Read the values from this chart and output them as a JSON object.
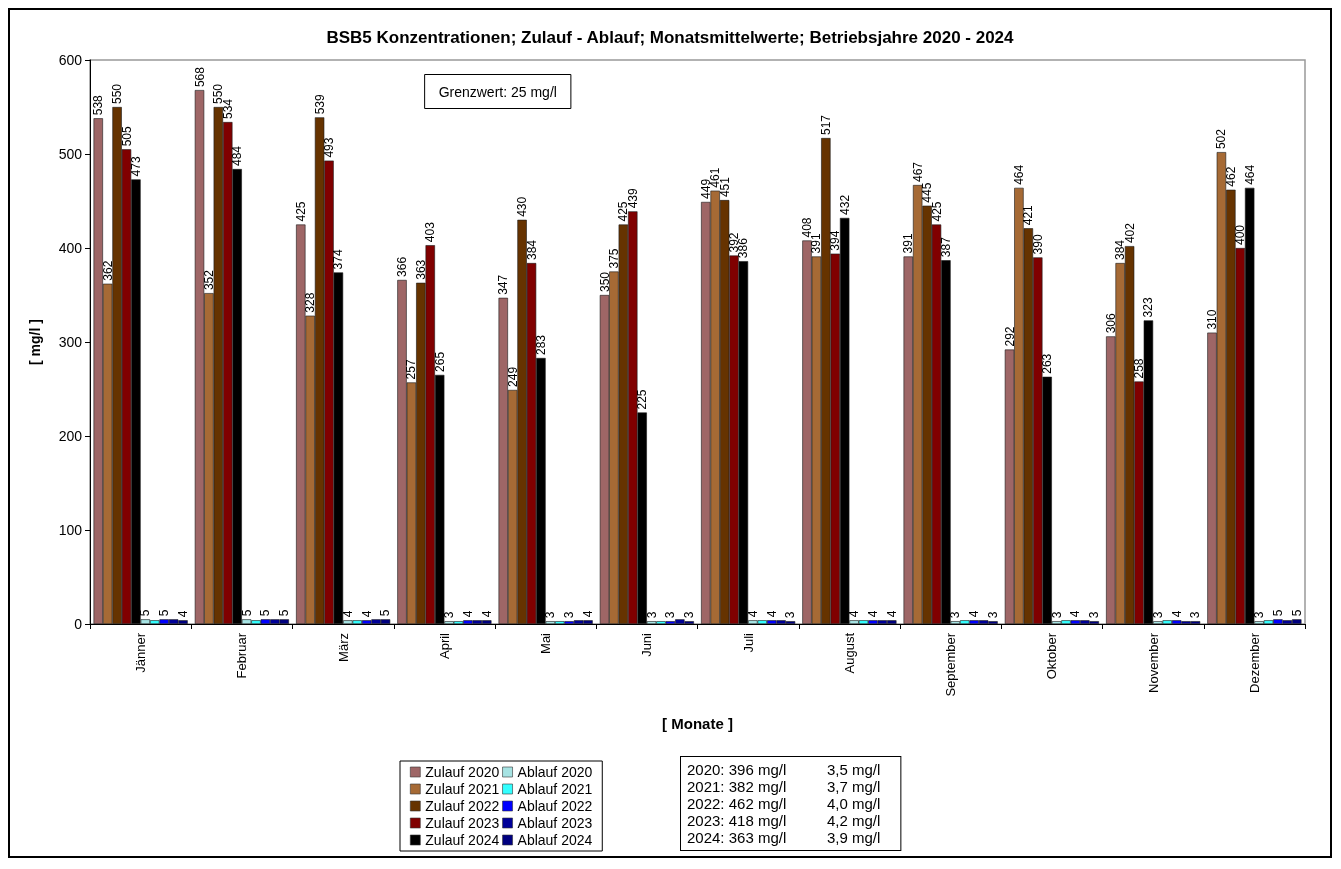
{
  "chart_data": {
    "type": "bar",
    "title": "BSB5 Konzentrationen; Zulauf - Ablauf; Monatsmittelwerte; Betriebsjahre 2020 - 2024",
    "xlabel": "[ Monate ]",
    "ylabel": "[ mg/l ]",
    "categories": [
      "Jänner",
      "Februar",
      "März",
      "April",
      "Mai",
      "Juni",
      "Juli",
      "August",
      "September",
      "Oktober",
      "November",
      "Dezember"
    ],
    "series": [
      {
        "name": "Zulauf 2020",
        "color": "#9e6666",
        "values": [
          538,
          568,
          425,
          366,
          347,
          350,
          449,
          408,
          391,
          292,
          306,
          310
        ],
        "value_labels": [
          "538",
          "568",
          "425",
          "366",
          "347",
          "350",
          "449",
          "408",
          "391",
          "292",
          "306",
          "310"
        ]
      },
      {
        "name": "Zulauf 2021",
        "color": "#a66a35",
        "values": [
          362,
          352,
          328,
          257,
          249,
          375,
          461,
          391,
          467,
          464,
          384,
          502
        ],
        "value_labels": [
          "362",
          "352",
          "328",
          "257",
          "249",
          "375",
          "461",
          "391",
          "467",
          "464",
          "384",
          "502"
        ]
      },
      {
        "name": "Zulauf 2022",
        "color": "#663300",
        "values": [
          550,
          550,
          539,
          363,
          430,
          425,
          451,
          517,
          445,
          421,
          402,
          462
        ],
        "value_labels": [
          "550",
          "550",
          "539",
          "363",
          "430",
          "425",
          "451",
          "517",
          "445",
          "421",
          "402",
          "462"
        ]
      },
      {
        "name": "Zulauf 2023",
        "color": "#800000",
        "values": [
          505,
          534,
          493,
          403,
          384,
          439,
          392,
          394,
          425,
          390,
          258,
          400
        ],
        "value_labels": [
          "505",
          "534",
          "493",
          "403",
          "384",
          "439",
          "392",
          "394",
          "425",
          "390",
          "258",
          "400"
        ]
      },
      {
        "name": "Zulauf 2024",
        "color": "#000000",
        "values": [
          473,
          484,
          374,
          265,
          283,
          225,
          386,
          432,
          387,
          263,
          323,
          464
        ],
        "value_labels": [
          "473",
          "484",
          "374",
          "265",
          "283",
          "225",
          "386",
          "432",
          "387",
          "263",
          "323",
          "464"
        ]
      },
      {
        "name": "Ablauf 2020",
        "color": "#a6e3e3",
        "values": [
          5,
          5,
          4,
          3,
          3,
          3,
          4,
          4,
          3,
          3,
          3,
          3
        ],
        "value_labels": [
          "5",
          "5",
          "4",
          "3",
          "3",
          "3",
          "4",
          "4",
          "3",
          "3",
          "3",
          "3"
        ]
      },
      {
        "name": "Ablauf 2021",
        "color": "#33ffff",
        "values": [
          4,
          4,
          4,
          3,
          3,
          3,
          4,
          4,
          4,
          4,
          4,
          4
        ]
      },
      {
        "name": "Ablauf 2022",
        "color": "#0000ff",
        "values": [
          5,
          5,
          4,
          4,
          3,
          3,
          4,
          4,
          4,
          4,
          4,
          5
        ],
        "value_labels": [
          "5",
          "5",
          "4",
          "4",
          "3",
          "3",
          "4",
          "4",
          "4",
          "4",
          "4",
          "5"
        ]
      },
      {
        "name": "Ablauf 2023",
        "color": "#000099",
        "values": [
          5,
          5,
          5,
          4,
          4,
          5,
          4,
          4,
          4,
          4,
          3,
          4
        ]
      },
      {
        "name": "Ablauf 2024",
        "color": "#000080",
        "values": [
          4,
          5,
          5,
          4,
          4,
          3,
          3,
          4,
          3,
          3,
          3,
          5
        ],
        "value_labels": [
          "4",
          "5",
          "5",
          "4",
          "4",
          "3",
          "3",
          "4",
          "3",
          "3",
          "3",
          "5"
        ]
      }
    ],
    "ylim": [
      0,
      600
    ],
    "yticks": [
      0,
      100,
      200,
      300,
      400,
      500,
      600
    ],
    "legend": "bottom",
    "annotations": [
      "Grenzwert: 25 mg/l",
      "2020: 396 mg/l\t3,5 mg/l",
      "2021: 382 mg/l\t3,7 mg/l",
      "2022: 462 mg/l\t4,0 mg/l",
      "2023: 418 mg/l\t4,2 mg/l",
      "2024: 363 mg/l\t3,9 mg/l"
    ]
  }
}
